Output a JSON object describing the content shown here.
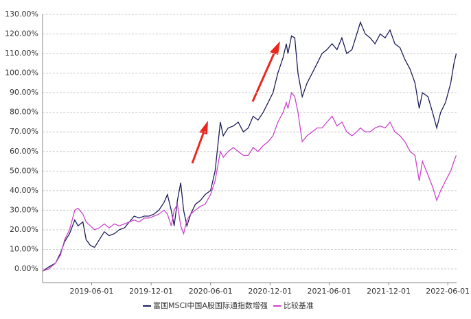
{
  "chart_data": {
    "type": "line",
    "x": [
      "2019-01-02",
      "2019-01-20",
      "2019-02-10",
      "2019-02-25",
      "2019-03-10",
      "2019-03-25",
      "2019-04-10",
      "2019-04-20",
      "2019-05-05",
      "2019-05-15",
      "2019-05-28",
      "2019-06-10",
      "2019-06-25",
      "2019-07-10",
      "2019-07-25",
      "2019-08-10",
      "2019-08-25",
      "2019-09-10",
      "2019-09-25",
      "2019-10-10",
      "2019-10-25",
      "2019-11-10",
      "2019-11-25",
      "2019-12-10",
      "2019-12-25",
      "2020-01-10",
      "2020-01-20",
      "2020-02-01",
      "2020-02-10",
      "2020-02-20",
      "2020-03-01",
      "2020-03-10",
      "2020-03-20",
      "2020-04-01",
      "2020-04-15",
      "2020-05-01",
      "2020-05-15",
      "2020-06-01",
      "2020-06-15",
      "2020-07-01",
      "2020-07-10",
      "2020-07-25",
      "2020-08-10",
      "2020-08-25",
      "2020-09-10",
      "2020-09-25",
      "2020-10-10",
      "2020-10-25",
      "2020-11-10",
      "2020-11-25",
      "2020-12-10",
      "2020-12-25",
      "2021-01-10",
      "2021-01-20",
      "2021-01-25",
      "2021-02-05",
      "2021-02-15",
      "2021-02-25",
      "2021-03-10",
      "2021-03-25",
      "2021-04-10",
      "2021-04-25",
      "2021-05-10",
      "2021-05-25",
      "2021-06-10",
      "2021-06-25",
      "2021-07-10",
      "2021-07-25",
      "2021-08-10",
      "2021-08-25",
      "2021-09-05",
      "2021-09-20",
      "2021-10-05",
      "2021-10-20",
      "2021-11-05",
      "2021-11-20",
      "2021-12-05",
      "2021-12-20",
      "2022-01-05",
      "2022-01-20",
      "2022-02-05",
      "2022-02-20",
      "2022-03-05",
      "2022-03-15",
      "2022-04-01",
      "2022-04-15",
      "2022-04-28",
      "2022-05-10",
      "2022-05-25",
      "2022-06-10",
      "2022-06-20",
      "2022-06-27"
    ],
    "series": [
      {
        "name": "富国MSCI中国A股国际通指数增强",
        "color": "#1c1c5a",
        "values": [
          -1,
          1,
          3,
          8,
          14,
          18,
          25,
          22,
          24,
          15,
          12,
          11,
          15,
          19,
          17,
          18,
          20,
          21,
          24,
          27,
          26,
          27,
          27,
          28,
          30,
          34,
          38,
          30,
          22,
          35,
          44,
          30,
          22,
          28,
          33,
          35,
          38,
          40,
          50,
          75,
          68,
          72,
          73,
          75,
          70,
          72,
          78,
          76,
          80,
          85,
          90,
          100,
          108,
          115,
          110,
          119,
          118,
          100,
          88,
          95,
          100,
          105,
          110,
          112,
          115,
          112,
          118,
          110,
          112,
          120,
          126,
          120,
          118,
          115,
          120,
          118,
          122,
          115,
          113,
          107,
          102,
          95,
          82,
          90,
          88,
          80,
          72,
          80,
          85,
          95,
          105,
          110
        ]
      },
      {
        "name": "比较基准",
        "color": "#cc44cc",
        "values": [
          -1,
          0,
          3,
          7,
          15,
          20,
          30,
          31,
          28,
          24,
          22,
          20,
          21,
          23,
          21,
          23,
          22,
          23,
          24,
          25,
          24,
          26,
          26,
          27,
          28,
          30,
          28,
          22,
          30,
          33,
          22,
          18,
          25,
          28,
          30,
          32,
          33,
          38,
          45,
          60,
          57,
          60,
          62,
          60,
          58,
          58,
          62,
          60,
          63,
          65,
          68,
          75,
          80,
          85,
          82,
          90,
          88,
          80,
          65,
          68,
          70,
          72,
          72,
          75,
          78,
          73,
          75,
          70,
          68,
          70,
          72,
          70,
          70,
          72,
          73,
          72,
          75,
          70,
          68,
          65,
          60,
          58,
          45,
          55,
          48,
          42,
          35,
          40,
          45,
          50,
          55,
          58
        ]
      }
    ],
    "xlim": [
      "2019-01-01",
      "2022-06-28"
    ],
    "xticks": [
      "2019-06-01",
      "2019-12-01",
      "2020-06-01",
      "2020-12-01",
      "2021-06-01",
      "2021-12-01",
      "2022-06-01"
    ],
    "ylim": [
      -7,
      130
    ],
    "yticks": [
      {
        "value": 0,
        "label": "0.00%"
      },
      {
        "value": 10,
        "label": "10.00%"
      },
      {
        "value": 20,
        "label": "20.00%"
      },
      {
        "value": 30,
        "label": "30.00%"
      },
      {
        "value": 40,
        "label": "40.00%"
      },
      {
        "value": 50,
        "label": "50.00%"
      },
      {
        "value": 60,
        "label": "60.00%"
      },
      {
        "value": 70,
        "label": "70.00%"
      },
      {
        "value": 80,
        "label": "80.00%"
      },
      {
        "value": 90,
        "label": "90.00%"
      },
      {
        "value": 100,
        "label": "100.00%"
      },
      {
        "value": 110,
        "label": "110.00%"
      },
      {
        "value": 120,
        "label": "120.00%"
      },
      {
        "value": 130,
        "label": "130.00%"
      }
    ],
    "grid": true
  }
}
